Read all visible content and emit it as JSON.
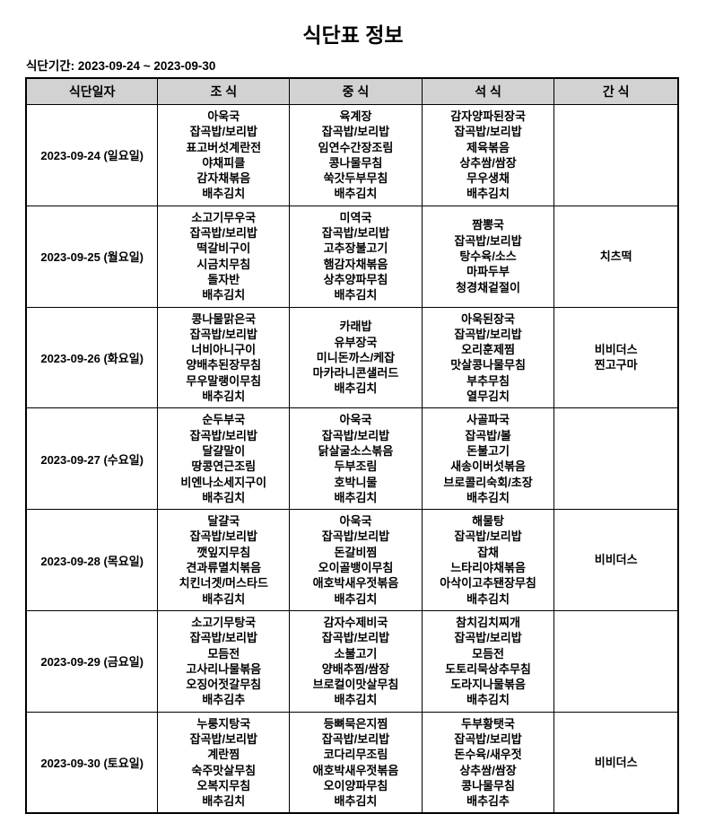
{
  "page": {
    "title": "식단표 정보",
    "period_label": "식단기간: 2023-09-24 ~ 2023-09-30"
  },
  "colors": {
    "header_bg": "#d2d2d2",
    "border": "#000000",
    "text": "#000000",
    "background": "#ffffff"
  },
  "table": {
    "headers": [
      "식단일자",
      "조 식",
      "중 식",
      "석 식",
      "간 식"
    ],
    "rows": [
      {
        "date": "2023-09-24 (일요일)",
        "breakfast": [
          "아욱국",
          "잡곡밥/보리밥",
          "표고버섯계란전",
          "야채피클",
          "감자채볶음",
          "배추김치"
        ],
        "lunch": [
          "육계장",
          "잡곡밥/보리밥",
          "임연수간장조림",
          "콩나물무침",
          "쑥갓두부무침",
          "배추김치"
        ],
        "dinner": [
          "감자양파된장국",
          "잡곡밥/보리밥",
          "제육볶음",
          "상추쌈/쌈장",
          "무우생채",
          "배추김치"
        ],
        "snack": []
      },
      {
        "date": "2023-09-25 (월요일)",
        "breakfast": [
          "소고기무우국",
          "잡곡밥/보리밥",
          "떡갈비구이",
          "시금치무침",
          "돌자반",
          "배추김치"
        ],
        "lunch": [
          "미역국",
          "잡곡밥/보리밥",
          "고추장불고기",
          "햄감자채볶음",
          "상추양파무침",
          "배추김치"
        ],
        "dinner": [
          "짬뽕국",
          "잡곡밥/보리밥",
          "탕수육/소스",
          "마파두부",
          "청경채겉절이"
        ],
        "snack": [
          "치츠떡"
        ]
      },
      {
        "date": "2023-09-26 (화요일)",
        "breakfast": [
          "콩나물맑은국",
          "잡곡밥/보리밥",
          "너비아니구이",
          "양배추된장무침",
          "무우말랭이무침",
          "배추김치"
        ],
        "lunch": [
          "카래밥",
          "유부장국",
          "미니돈까스/케잡",
          "마카라니콘샐러드",
          "배추김치"
        ],
        "dinner": [
          "아욱된장국",
          "잡곡밥/보리밥",
          "오리훈제찜",
          "맛살콩나물무침",
          "부추무침",
          "열무김치"
        ],
        "snack": [
          "비비더스",
          "찐고구마"
        ]
      },
      {
        "date": "2023-09-27 (수요일)",
        "breakfast": [
          "순두부국",
          "잡곡밥/보리밥",
          "달걀말이",
          "땅콩연근조림",
          "비엔나소세지구이",
          "배추김치"
        ],
        "lunch": [
          "아욱국",
          "잡곡밥/보리밥",
          "닭살굴소스볶음",
          "두부조림",
          "호박니물",
          "배추김치"
        ],
        "dinner": [
          "사골파국",
          "잡곡밥/볼",
          "돈불고기",
          "새송이버섯볶음",
          "브로콜리숙회/초장",
          "배추김치"
        ],
        "snack": []
      },
      {
        "date": "2023-09-28 (목요일)",
        "breakfast": [
          "달걀국",
          "잡곡밥/보리밥",
          "깻잎지무침",
          "견과류멸치볶음",
          "치킨너겟/머스타드",
          "배추김치"
        ],
        "lunch": [
          "아욱국",
          "잡곡밥/보리밥",
          "돈갈비찜",
          "오이골뱅이무침",
          "애호박새우젓볶음",
          "배추김치"
        ],
        "dinner": [
          "해물탕",
          "잡곡밥/보리밥",
          "잡채",
          "느타리야채볶음",
          "아삭이고추됀장무침",
          "배추김치"
        ],
        "snack": [
          "비비더스"
        ]
      },
      {
        "date": "2023-09-29 (금요일)",
        "breakfast": [
          "소고기무탕국",
          "잡곡밥/보리밥",
          "모듬전",
          "고사리나물볶음",
          "오징어젓갈무침",
          "배추김추"
        ],
        "lunch": [
          "감자수제비국",
          "잡곡밥/보리밥",
          "소불고기",
          "양배추찜/쌈장",
          "브로컬이맛살무침",
          "배추김치"
        ],
        "dinner": [
          "참치김치찌개",
          "잡곡밥/보리밥",
          "모듬전",
          "도토리묵상추무침",
          "도라지나물볶음",
          "배추김치"
        ],
        "snack": []
      },
      {
        "date": "2023-09-30 (토요일)",
        "breakfast": [
          "누룽지탕국",
          "잡곡밥/보리밥",
          "계란찜",
          "숙주맛살무침",
          "오복지무침",
          "배추김치"
        ],
        "lunch": [
          "등뼈묵은지찜",
          "잡곡밥/보리밥",
          "코다리무조림",
          "애호박새우젓볶음",
          "오이양파무침",
          "배추김치"
        ],
        "dinner": [
          "두부황탯국",
          "잡곡밥/보리밥",
          "돈수육/새우젓",
          "상추쌈/쌈장",
          "콩나물무침",
          "배추김추"
        ],
        "snack": [
          "비비더스"
        ]
      }
    ]
  }
}
